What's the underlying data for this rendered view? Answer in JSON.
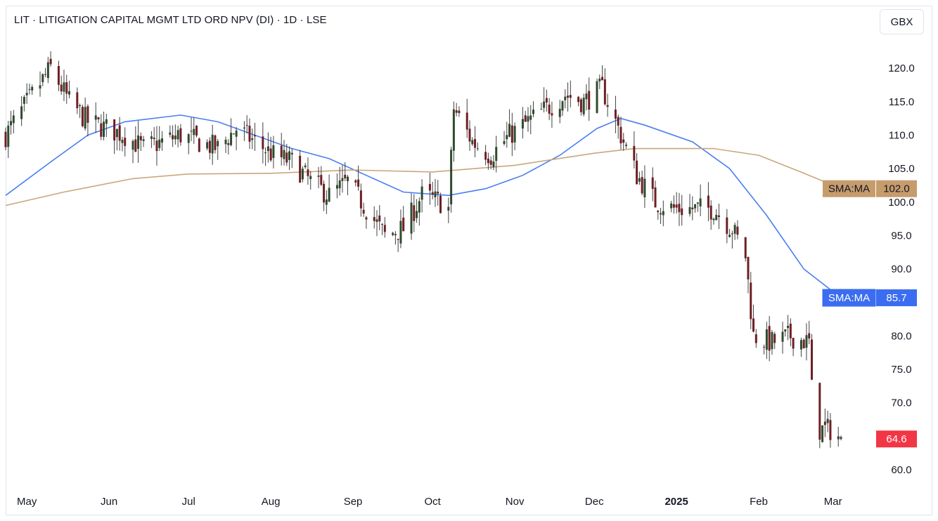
{
  "header": {
    "title": "LIT · LITIGATION CAPITAL MGMT LTD ORD NPV (DI) · 1D · LSE",
    "currency_button": "GBX"
  },
  "chart_data": {
    "type": "candlestick",
    "symbol": "LIT",
    "interval": "1D",
    "exchange": "LSE",
    "currency": "GBX",
    "ylim": [
      57.8,
      126.0
    ],
    "y_ticks": [
      60.0,
      65.0,
      70.0,
      75.0,
      80.0,
      85.0,
      90.0,
      95.0,
      100.0,
      105.0,
      110.0,
      115.0,
      120.0
    ],
    "x_ticks": [
      {
        "label": "May",
        "date": "2024-05-01"
      },
      {
        "label": "Jun",
        "date": "2024-06-01"
      },
      {
        "label": "Jul",
        "date": "2024-07-01"
      },
      {
        "label": "Aug",
        "date": "2024-08-01"
      },
      {
        "label": "Sep",
        "date": "2024-09-01"
      },
      {
        "label": "Oct",
        "date": "2024-10-01"
      },
      {
        "label": "Nov",
        "date": "2024-11-01"
      },
      {
        "label": "Dec",
        "date": "2024-12-01"
      },
      {
        "label": "2025",
        "date": "2025-01-01",
        "bold": true
      },
      {
        "label": "Feb",
        "date": "2025-02-01"
      },
      {
        "label": "Mar",
        "date": "2025-03-01"
      }
    ],
    "x_range": [
      "2024-04-23",
      "2025-03-04"
    ],
    "colors": {
      "up": "#2e4b2e",
      "down": "#6e1f24",
      "wick": "#404040",
      "sma_short": "#4a7ef0",
      "sma_long": "#c9a77a",
      "last_price": "#f23645"
    },
    "close_path": [
      [
        "2024-04-23",
        110
      ],
      [
        "2024-05-03",
        116
      ],
      [
        "2024-05-10",
        120
      ],
      [
        "2024-05-17",
        115
      ],
      [
        "2024-05-24",
        112
      ],
      [
        "2024-05-31",
        111
      ],
      [
        "2024-06-07",
        110
      ],
      [
        "2024-06-14",
        108
      ],
      [
        "2024-06-21",
        109
      ],
      [
        "2024-06-28",
        110
      ],
      [
        "2024-07-05",
        109
      ],
      [
        "2024-07-12",
        108
      ],
      [
        "2024-07-19",
        111
      ],
      [
        "2024-07-26",
        109
      ],
      [
        "2024-08-02",
        107
      ],
      [
        "2024-08-09",
        106
      ],
      [
        "2024-08-16",
        103
      ],
      [
        "2024-08-23",
        101
      ],
      [
        "2024-08-30",
        103
      ],
      [
        "2024-09-06",
        99
      ],
      [
        "2024-09-13",
        95
      ],
      [
        "2024-09-20",
        96
      ],
      [
        "2024-09-27",
        101
      ],
      [
        "2024-10-04",
        100
      ],
      [
        "2024-10-07",
        99
      ],
      [
        "2024-10-09",
        114
      ],
      [
        "2024-10-16",
        109
      ],
      [
        "2024-10-23",
        107
      ],
      [
        "2024-10-30",
        110
      ],
      [
        "2024-11-06",
        112
      ],
      [
        "2024-11-13",
        114
      ],
      [
        "2024-11-20",
        116
      ],
      [
        "2024-11-27",
        115
      ],
      [
        "2024-12-04",
        117
      ],
      [
        "2024-12-10",
        111
      ],
      [
        "2024-12-17",
        104
      ],
      [
        "2024-12-24",
        100
      ],
      [
        "2024-12-31",
        99
      ],
      [
        "2025-01-08",
        99
      ],
      [
        "2025-01-15",
        99
      ],
      [
        "2025-01-22",
        96
      ],
      [
        "2025-01-27",
        92
      ],
      [
        "2025-01-30",
        80
      ],
      [
        "2025-02-06",
        79
      ],
      [
        "2025-02-13",
        80
      ],
      [
        "2025-02-20",
        79
      ],
      [
        "2025-02-21",
        72
      ],
      [
        "2025-02-24",
        66
      ],
      [
        "2025-02-28",
        66
      ],
      [
        "2025-03-04",
        64.6
      ]
    ],
    "series": [
      {
        "name": "SMA:MA",
        "last_value": 85.7,
        "color": "#4a7ef0",
        "points": [
          [
            "2024-04-23",
            101
          ],
          [
            "2024-05-10",
            106
          ],
          [
            "2024-05-24",
            110
          ],
          [
            "2024-06-07",
            112
          ],
          [
            "2024-06-28",
            113
          ],
          [
            "2024-07-12",
            112
          ],
          [
            "2024-07-26",
            110
          ],
          [
            "2024-08-09",
            108
          ],
          [
            "2024-08-23",
            106.5
          ],
          [
            "2024-09-06",
            104
          ],
          [
            "2024-09-20",
            101.5
          ],
          [
            "2024-10-07",
            101
          ],
          [
            "2024-10-21",
            102
          ],
          [
            "2024-11-04",
            104
          ],
          [
            "2024-11-18",
            107
          ],
          [
            "2024-12-02",
            111
          ],
          [
            "2024-12-11",
            112.5
          ],
          [
            "2024-12-20",
            111.5
          ],
          [
            "2025-01-07",
            109
          ],
          [
            "2025-01-21",
            105
          ],
          [
            "2025-02-04",
            98
          ],
          [
            "2025-02-18",
            90
          ],
          [
            "2025-03-04",
            85.7
          ]
        ]
      },
      {
        "name": "SMA:MA",
        "last_value": 102.0,
        "color": "#c9a77a",
        "points": [
          [
            "2024-04-23",
            99.5
          ],
          [
            "2024-05-15",
            101.5
          ],
          [
            "2024-06-10",
            103.5
          ],
          [
            "2024-07-01",
            104.2
          ],
          [
            "2024-08-01",
            104.3
          ],
          [
            "2024-09-01",
            104.8
          ],
          [
            "2024-10-01",
            104.5
          ],
          [
            "2024-11-01",
            105.5
          ],
          [
            "2024-12-01",
            107.3
          ],
          [
            "2024-12-16",
            108
          ],
          [
            "2025-01-15",
            108
          ],
          [
            "2025-02-01",
            107
          ],
          [
            "2025-02-20",
            104
          ],
          [
            "2025-03-04",
            102.0
          ]
        ]
      }
    ],
    "last_price": 64.6
  }
}
